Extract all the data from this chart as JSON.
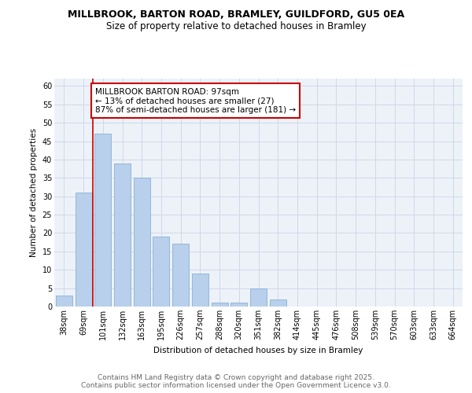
{
  "title1": "MILLBROOK, BARTON ROAD, BRAMLEY, GUILDFORD, GU5 0EA",
  "title2": "Size of property relative to detached houses in Bramley",
  "xlabel": "Distribution of detached houses by size in Bramley",
  "ylabel": "Number of detached properties",
  "categories": [
    "38sqm",
    "69sqm",
    "101sqm",
    "132sqm",
    "163sqm",
    "195sqm",
    "226sqm",
    "257sqm",
    "288sqm",
    "320sqm",
    "351sqm",
    "382sqm",
    "414sqm",
    "445sqm",
    "476sqm",
    "508sqm",
    "539sqm",
    "570sqm",
    "603sqm",
    "633sqm",
    "664sqm"
  ],
  "values": [
    3,
    31,
    47,
    39,
    35,
    19,
    17,
    9,
    1,
    1,
    5,
    2,
    0,
    0,
    0,
    0,
    0,
    0,
    0,
    0,
    0
  ],
  "bar_color": "#b8d0eb",
  "bar_edge_color": "#8cb0d4",
  "annotation_box_text": "MILLBROOK BARTON ROAD: 97sqm\n← 13% of detached houses are smaller (27)\n87% of semi-detached houses are larger (181) →",
  "annotation_box_color": "#ffffff",
  "annotation_box_edge_color": "#cc0000",
  "vline_x": 1.5,
  "vline_color": "#cc0000",
  "ylim": [
    0,
    62
  ],
  "yticks": [
    0,
    5,
    10,
    15,
    20,
    25,
    30,
    35,
    40,
    45,
    50,
    55,
    60
  ],
  "grid_color": "#d0d8e8",
  "background_color": "#edf2f9",
  "footer_text": "Contains HM Land Registry data © Crown copyright and database right 2025.\nContains public sector information licensed under the Open Government Licence v3.0.",
  "title_fontsize": 9,
  "subtitle_fontsize": 8.5,
  "annotation_fontsize": 7.5,
  "footer_fontsize": 6.5,
  "axis_label_fontsize": 7.5,
  "tick_fontsize": 7,
  "ylabel_fontsize": 7.5
}
